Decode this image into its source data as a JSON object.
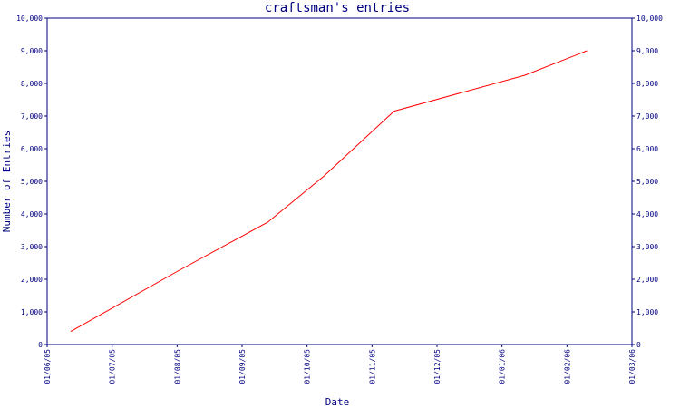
{
  "chart_data": {
    "type": "line",
    "title": "craftsman's entries",
    "xlabel": "Date",
    "ylabel": "Number of Entries",
    "xlim": [
      "2005-06-01",
      "2006-03-01"
    ],
    "ylim": [
      0,
      10000
    ],
    "x_ticks": [
      "01/06/05",
      "01/07/05",
      "01/08/05",
      "01/09/05",
      "01/10/05",
      "01/11/05",
      "01/12/05",
      "01/01/06",
      "01/02/06",
      "01/03/06"
    ],
    "y_ticks": [
      "0",
      "1,000",
      "2,000",
      "3,000",
      "4,000",
      "5,000",
      "6,000",
      "7,000",
      "8,000",
      "9,000",
      "10,000"
    ],
    "y_tick_values": [
      0,
      1000,
      2000,
      3000,
      4000,
      5000,
      6000,
      7000,
      8000,
      9000,
      10000
    ],
    "grid": false,
    "color": "#ff0000",
    "series": [
      {
        "x": [
          "2005-06-12",
          "2005-08-01",
          "2005-09-12",
          "2005-10-08",
          "2005-11-10",
          "2006-01-10",
          "2006-02-08"
        ],
        "y": [
          400,
          2250,
          3750,
          5150,
          7150,
          8250,
          9000
        ]
      }
    ]
  }
}
